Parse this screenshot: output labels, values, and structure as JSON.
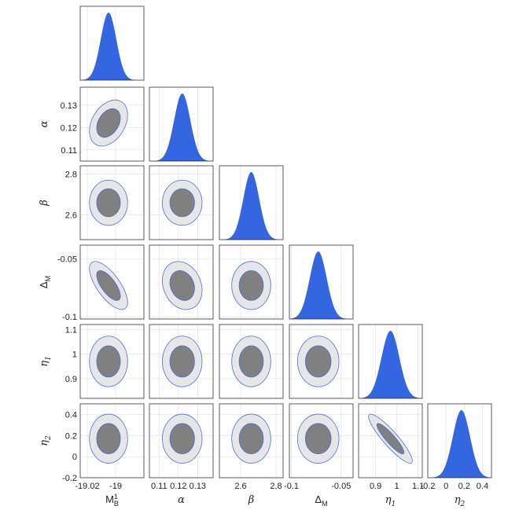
{
  "chart_data": {
    "type": "triangle-plot",
    "params": [
      {
        "key": "MB",
        "label": "M",
        "sub": "B",
        "sup": "1",
        "italic": false,
        "range": [
          -19.025,
          -18.98
        ],
        "mean": -19.005,
        "sd": 0.0055,
        "ticks": [
          -19.02,
          -19
        ],
        "tick_labels": [
          "-19.02",
          "-19"
        ]
      },
      {
        "key": "alpha",
        "label": "α",
        "sub": "",
        "sup": "",
        "italic": true,
        "range": [
          0.105,
          0.138
        ],
        "mean": 0.122,
        "sd": 0.0042,
        "ticks": [
          0.11,
          0.12,
          0.13
        ],
        "tick_labels": [
          "0.11",
          "0.12",
          "0.13"
        ]
      },
      {
        "key": "beta",
        "label": "β",
        "sub": "",
        "sup": "",
        "italic": true,
        "range": [
          2.48,
          2.84
        ],
        "mean": 2.66,
        "sd": 0.045,
        "ticks": [
          2.6,
          2.8
        ],
        "tick_labels": [
          "2.6",
          "2.8"
        ]
      },
      {
        "key": "DeltaM",
        "label": "Δ",
        "sub": "M",
        "sup": "",
        "italic": false,
        "range": [
          -0.102,
          -0.038
        ],
        "mean": -0.073,
        "sd": 0.0085,
        "ticks": [
          -0.1,
          -0.05
        ],
        "tick_labels": [
          "-0.1",
          "-0.05"
        ]
      },
      {
        "key": "eta1",
        "label": "η",
        "sub": "1",
        "sup": "",
        "italic": true,
        "range": [
          0.82,
          1.12
        ],
        "mean": 0.97,
        "sd": 0.042,
        "ticks": [
          0.9,
          1,
          1.1
        ],
        "tick_labels": [
          "0.9",
          "1",
          "1.1"
        ]
      },
      {
        "key": "eta2",
        "label": "η",
        "sub": "2",
        "sup": "",
        "italic": true,
        "range": [
          -0.2,
          0.5
        ],
        "mean": 0.17,
        "sd": 0.095,
        "ticks": [
          -0.2,
          0,
          0.2,
          0.4
        ],
        "tick_labels": [
          "-0.2",
          "0",
          "0.2",
          "0.4"
        ]
      }
    ],
    "correlations": [
      {
        "x": "MB",
        "y": "alpha",
        "rho": 0.35
      },
      {
        "x": "MB",
        "y": "DeltaM",
        "rho": -0.7
      },
      {
        "x": "alpha",
        "y": "DeltaM",
        "rho": -0.2
      },
      {
        "x": "eta1",
        "y": "eta2",
        "rho": -0.9
      }
    ],
    "contour_levels": [
      "68%",
      "95%"
    ],
    "colors": {
      "marginal_fill": "#3366e0",
      "inner_contour": "#808080",
      "outer_contour": "#e6e6e6",
      "contour_edge": "#4d6fd6",
      "grid": "#dddddd"
    },
    "grid": true
  }
}
